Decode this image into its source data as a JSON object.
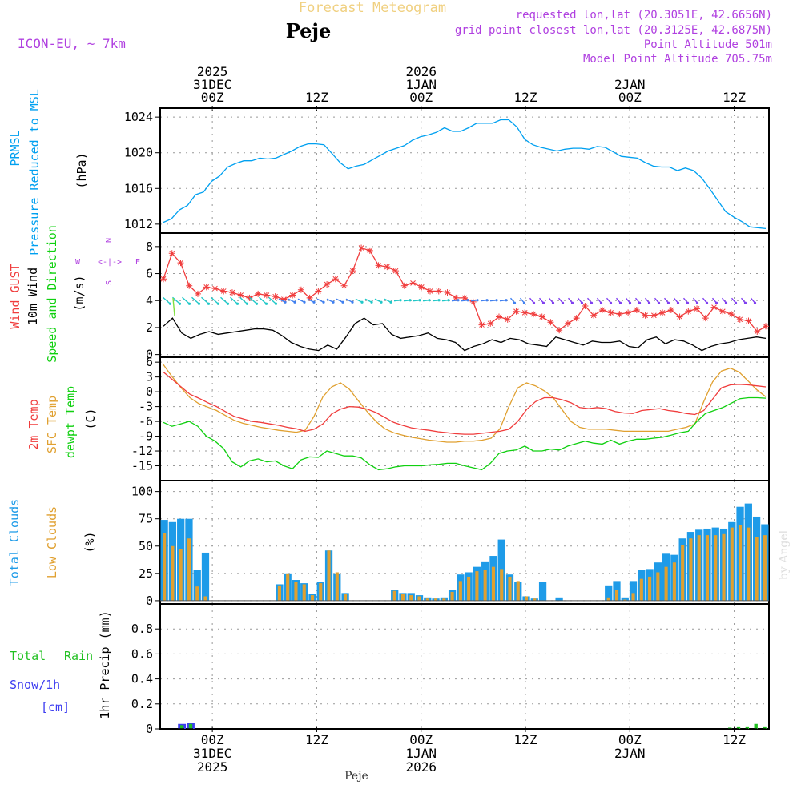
{
  "colors": {
    "pressure": "#00a0f0",
    "gust": "#f03c3c",
    "wind": "#000000",
    "temp": "#f03c3c",
    "sfc": "#e0a030",
    "dewpt": "#10d010",
    "total_cloud": "#1e9be8",
    "low_cloud": "#e0a030",
    "rain": "#20c020",
    "snow": "#3c3cf0",
    "purple": "#b040e0",
    "title": "#f0d080",
    "grid": "#999999"
  },
  "header": {
    "title": "Forecast Meteogram",
    "location": "Peje",
    "model": "ICON-EU, ~ 7km",
    "requested": "requested lon,lat (20.3051E, 42.6656N)",
    "grid_point": "grid point closest lon,lat (20.3125E, 42.6875N)",
    "point_alt": "Point Altitude 501m",
    "model_alt": "Model Point Altitude 705.75m",
    "watermark": "by Angel",
    "footer": "Peje"
  },
  "time_axis": {
    "hours_total": 64,
    "top_labels": [
      {
        "hour": 6,
        "lines": [
          "2025",
          "31DEC",
          "00Z"
        ]
      },
      {
        "hour": 18,
        "lines": [
          "12Z"
        ]
      },
      {
        "hour": 30,
        "lines": [
          "2026",
          "1JAN",
          "00Z"
        ]
      },
      {
        "hour": 42,
        "lines": [
          "12Z"
        ]
      },
      {
        "hour": 54,
        "lines": [
          "2JAN",
          "00Z"
        ]
      },
      {
        "hour": 66,
        "lines": [
          "12Z"
        ]
      }
    ],
    "bottom_labels": [
      {
        "hour": 6,
        "lines": [
          "00Z",
          "31DEC",
          "2025"
        ]
      },
      {
        "hour": 18,
        "lines": [
          "12Z"
        ]
      },
      {
        "hour": 30,
        "lines": [
          "00Z",
          "1JAN",
          "2026"
        ]
      },
      {
        "hour": 42,
        "lines": [
          "12Z"
        ]
      },
      {
        "hour": 54,
        "lines": [
          "00Z",
          "2JAN"
        ]
      },
      {
        "hour": 66,
        "lines": [
          "12Z"
        ]
      }
    ]
  },
  "labels": {
    "pressure": {
      "name1": "PRMSL",
      "name2": "Pressure Reduced to MSL",
      "unit": "(hPa)"
    },
    "wind": {
      "gust": "Wind GUST",
      "wind": "10m Wind",
      "speed": "Speed and Direction",
      "unit": "(m/s)",
      "compass_n": "N",
      "compass_s": "S",
      "compass_w": "W",
      "compass_e": "E",
      "compass_arrows": "<-|->"
    },
    "temp": {
      "t2m": "2m Temp",
      "sfc": "SFC Temp",
      "dew": "dewpt Temp",
      "unit": "(C)"
    },
    "cloud": {
      "total": "Total Clouds",
      "low": "Low Clouds",
      "unit": "(%)"
    },
    "precip": {
      "rain1": "Total",
      "rain2": "Rain",
      "snow": "Snow/1h",
      "snow_unit": "[cm]",
      "axis": "1hr Precip (mm)"
    }
  },
  "chart_data": [
    {
      "type": "line",
      "name": "pressure",
      "ylim": [
        1011,
        1025
      ],
      "yticks": [
        1012,
        1016,
        1020,
        1024
      ],
      "y": [
        1012.2,
        1012.6,
        1013.6,
        1014.1,
        1015.3,
        1015.6,
        1016.8,
        1017.4,
        1018.4,
        1018.8,
        1019.1,
        1019.1,
        1019.4,
        1019.3,
        1019.4,
        1019.8,
        1020.2,
        1020.7,
        1021.0,
        1021.0,
        1020.9,
        1019.9,
        1018.9,
        1018.2,
        1018.5,
        1018.7,
        1019.2,
        1019.7,
        1020.2,
        1020.5,
        1020.8,
        1021.4,
        1021.8,
        1022.0,
        1022.3,
        1022.8,
        1022.4,
        1022.4,
        1022.8,
        1023.3,
        1023.3,
        1023.3,
        1023.7,
        1023.7,
        1022.9,
        1021.5,
        1020.9,
        1020.6,
        1020.4,
        1020.2,
        1020.4,
        1020.5,
        1020.5,
        1020.4,
        1020.7,
        1020.6,
        1020.1,
        1019.6,
        1019.5,
        1019.4,
        1018.9,
        1018.5,
        1018.4,
        1018.4,
        1018.0,
        1018.3,
        1018.0,
        1017.2,
        1016.0,
        1014.7,
        1013.4,
        1012.8,
        1012.3,
        1011.7,
        1011.6,
        1011.5
      ]
    },
    {
      "type": "line",
      "name": "wind",
      "ylim": [
        -0.2,
        9
      ],
      "yticks": [
        0,
        2,
        4,
        6,
        8
      ],
      "gust": [
        5.6,
        7.5,
        6.8,
        5.1,
        4.5,
        5.0,
        4.9,
        4.7,
        4.6,
        4.4,
        4.2,
        4.5,
        4.4,
        4.3,
        4.1,
        4.4,
        4.8,
        4.2,
        4.7,
        5.2,
        5.6,
        5.1,
        6.2,
        7.9,
        7.7,
        6.6,
        6.5,
        6.2,
        5.1,
        5.3,
        5.0,
        4.7,
        4.7,
        4.6,
        4.2,
        4.2,
        3.9,
        2.2,
        2.3,
        2.8,
        2.6,
        3.2,
        3.1,
        3.0,
        2.8,
        2.4,
        1.8,
        2.3,
        2.7,
        3.6,
        2.9,
        3.3,
        3.1,
        3.0,
        3.1,
        3.3,
        2.9,
        2.9,
        3.1,
        3.3,
        2.8,
        3.2,
        3.4,
        2.7,
        3.5,
        3.2,
        3.0,
        2.6,
        2.5,
        1.7,
        2.1
      ],
      "wind": [
        2.1,
        2.7,
        1.6,
        1.2,
        1.5,
        1.7,
        1.5,
        1.6,
        1.7,
        1.8,
        1.9,
        1.9,
        1.8,
        1.4,
        0.9,
        0.6,
        0.4,
        0.3,
        0.7,
        0.4,
        1.3,
        2.3,
        2.7,
        2.2,
        2.3,
        1.5,
        1.2,
        1.3,
        1.4,
        1.6,
        1.2,
        1.1,
        0.9,
        0.3,
        0.6,
        0.8,
        1.1,
        0.9,
        1.2,
        1.1,
        0.8,
        0.7,
        0.6,
        1.3,
        1.1,
        0.9,
        0.7,
        1.0,
        0.9,
        0.9,
        1.0,
        0.6,
        0.5,
        1.1,
        1.3,
        0.8,
        1.1,
        1.0,
        0.7,
        0.3,
        0.6,
        0.8,
        0.9,
        1.1,
        1.2,
        1.3,
        1.2
      ]
    },
    {
      "type": "line",
      "name": "temperature",
      "ylim": [
        -18,
        7
      ],
      "yticks": [
        6,
        3,
        0,
        -3,
        -6,
        -9,
        -12,
        -15
      ],
      "t2m": [
        4.0,
        2.5,
        1.0,
        -0.5,
        -1.3,
        -2.2,
        -3.0,
        -4.0,
        -5.0,
        -5.5,
        -6.0,
        -6.2,
        -6.5,
        -6.8,
        -7.2,
        -7.5,
        -8.0,
        -7.6,
        -6.5,
        -4.5,
        -3.5,
        -3.0,
        -3.1,
        -3.5,
        -4.2,
        -5.2,
        -6.2,
        -6.8,
        -7.3,
        -7.6,
        -7.8,
        -8.1,
        -8.3,
        -8.5,
        -8.6,
        -8.6,
        -8.4,
        -8.2,
        -8.0,
        -7.6,
        -6.0,
        -3.6,
        -2.0,
        -1.2,
        -1.2,
        -1.6,
        -2.2,
        -3.2,
        -3.4,
        -3.2,
        -3.4,
        -4.0,
        -4.3,
        -4.4,
        -3.8,
        -3.6,
        -3.4,
        -3.8,
        -4.0,
        -4.4,
        -4.6,
        -3.8,
        -1.5,
        0.8,
        1.4,
        1.5,
        1.4,
        1.2,
        1.0
      ],
      "sfc": [
        5.5,
        3.0,
        0.8,
        -1.2,
        -2.4,
        -3.1,
        -3.8,
        -4.8,
        -5.8,
        -6.4,
        -6.8,
        -7.2,
        -7.5,
        -7.8,
        -8.0,
        -8.2,
        -7.8,
        -5.0,
        -1.0,
        1.0,
        1.8,
        0.5,
        -1.8,
        -4.0,
        -6.0,
        -7.5,
        -8.3,
        -8.8,
        -9.2,
        -9.5,
        -9.8,
        -10.0,
        -10.2,
        -10.2,
        -10.0,
        -10.0,
        -9.8,
        -9.4,
        -7.5,
        -3.0,
        0.8,
        1.8,
        1.2,
        0.2,
        -1.2,
        -3.6,
        -6.0,
        -7.2,
        -7.6,
        -7.6,
        -7.6,
        -7.8,
        -8.0,
        -8.0,
        -8.0,
        -8.0,
        -8.0,
        -8.0,
        -7.6,
        -7.2,
        -6.5,
        -2.0,
        2.0,
        4.2,
        4.8,
        4.0,
        2.2,
        0.4,
        -1.0
      ],
      "dewpt": [
        -6.2,
        -7.0,
        -6.5,
        -6.0,
        -7.0,
        -9.0,
        -10.0,
        -11.5,
        -14.2,
        -15.2,
        -14.0,
        -13.6,
        -14.2,
        -14.0,
        -15.0,
        -15.6,
        -13.8,
        -13.2,
        -13.3,
        -12.0,
        -12.5,
        -13.0,
        -13.0,
        -13.4,
        -14.8,
        -15.8,
        -15.6,
        -15.2,
        -15.0,
        -15.0,
        -15.0,
        -14.8,
        -14.7,
        -14.5,
        -14.5,
        -15.0,
        -15.4,
        -15.8,
        -14.5,
        -12.5,
        -12.0,
        -11.8,
        -11.0,
        -12.0,
        -12.0,
        -11.6,
        -11.8,
        -11.0,
        -10.5,
        -10.0,
        -10.4,
        -10.6,
        -9.8,
        -10.6,
        -10.0,
        -9.6,
        -9.6,
        -9.4,
        -9.2,
        -8.8,
        -8.3,
        -8.0,
        -6.0,
        -4.4,
        -3.8,
        -3.2,
        -2.3,
        -1.4,
        -1.2,
        -1.2,
        -1.3
      ]
    },
    {
      "type": "bar",
      "name": "clouds",
      "ylim": [
        -3,
        110
      ],
      "yticks": [
        0,
        25,
        50,
        75,
        100
      ],
      "total": [
        74,
        72,
        75,
        75,
        28,
        44,
        0,
        0,
        0,
        0,
        0,
        0,
        0,
        0,
        15,
        25,
        19,
        16,
        6,
        17,
        46,
        25,
        7,
        0,
        0,
        0,
        0,
        0,
        10,
        7,
        7,
        5,
        3,
        2,
        3,
        10,
        24,
        26,
        31,
        36,
        41,
        56,
        24,
        17,
        4,
        2,
        17,
        0,
        3,
        0,
        0,
        0,
        0,
        0,
        14,
        18,
        3,
        18,
        28,
        29,
        35,
        43,
        42,
        57,
        63,
        65,
        66,
        67,
        66,
        72,
        86,
        89,
        77,
        70
      ],
      "low": [
        62,
        50,
        47,
        57,
        13,
        4,
        0,
        0,
        0,
        0,
        0,
        0,
        0,
        0,
        14,
        25,
        17,
        15,
        5,
        16,
        46,
        26,
        6,
        0,
        0,
        0,
        0,
        0,
        9,
        6,
        5,
        4,
        2,
        2,
        2,
        8,
        18,
        22,
        27,
        28,
        31,
        29,
        22,
        18,
        4,
        2,
        0,
        0,
        0,
        0,
        0,
        0,
        0,
        0,
        3,
        10,
        1,
        7,
        20,
        22,
        26,
        31,
        35,
        51,
        57,
        60,
        60,
        60,
        61,
        67,
        69,
        67,
        58,
        60
      ]
    },
    {
      "type": "bar",
      "name": "precip",
      "ylim": [
        0,
        1.0
      ],
      "yticks": [
        0,
        0.2,
        0.4,
        0.6,
        0.8
      ],
      "rain": [
        0,
        0,
        0.03,
        0.04,
        0,
        0,
        0,
        0,
        0,
        0,
        0,
        0,
        0,
        0,
        0,
        0,
        0,
        0,
        0,
        0,
        0,
        0,
        0,
        0,
        0,
        0,
        0,
        0,
        0,
        0,
        0,
        0,
        0,
        0,
        0,
        0,
        0,
        0,
        0,
        0,
        0,
        0,
        0,
        0,
        0,
        0,
        0,
        0,
        0,
        0,
        0,
        0,
        0,
        0,
        0,
        0,
        0,
        0,
        0,
        0,
        0,
        0,
        0,
        0,
        0,
        0.01,
        0.02,
        0.02,
        0.04,
        0.02
      ],
      "snow": [
        0,
        0,
        0.04,
        0.05,
        0,
        0,
        0,
        0,
        0,
        0,
        0,
        0,
        0,
        0,
        0,
        0,
        0,
        0,
        0,
        0,
        0,
        0,
        0,
        0,
        0,
        0,
        0,
        0,
        0,
        0,
        0,
        0,
        0,
        0,
        0,
        0,
        0,
        0,
        0,
        0,
        0,
        0,
        0,
        0,
        0,
        0,
        0,
        0,
        0,
        0,
        0,
        0,
        0,
        0,
        0,
        0,
        0,
        0,
        0,
        0,
        0,
        0,
        0,
        0,
        0,
        0,
        0,
        0,
        0,
        0
      ]
    }
  ]
}
